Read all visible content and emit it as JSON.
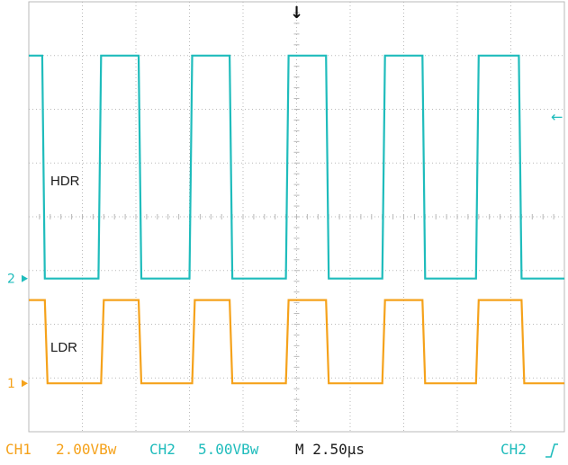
{
  "colors": {
    "ch1": "#f5a21b",
    "ch2": "#1fbcbc",
    "grid": "#b9b9b9",
    "background": "#ffffff",
    "text": "#1a1a1a"
  },
  "markers": {
    "ch1_ground": "1",
    "ch2_ground": "2",
    "trigger_position": "↓",
    "trigger_level": "←"
  },
  "status": {
    "ch1": "CH1",
    "ch1_scale": "2.00VBw",
    "ch2": "CH2",
    "ch2_scale": "5.00VBw",
    "timebase": "M 2.50µs",
    "trigger_source": "CH2",
    "trigger_slope_icon": "rising-edge-icon"
  },
  "chart_data": {
    "type": "line",
    "x_unit": "divisions",
    "y_unit": "divisions",
    "xlim": [
      0,
      10
    ],
    "ylim": [
      -4,
      4
    ],
    "grid": true,
    "series": [
      {
        "name": "HDR",
        "color": "#1fbcbc",
        "low": -1.15,
        "high": 3.0,
        "x": [
          0,
          0.25,
          0.3,
          1.3,
          1.35,
          2.05,
          2.1,
          3.0,
          3.05,
          3.75,
          3.8,
          4.8,
          4.85,
          5.55,
          5.6,
          6.6,
          6.65,
          7.35,
          7.4,
          8.35,
          8.4,
          9.15,
          9.2,
          10
        ],
        "y": [
          3.0,
          3.0,
          -1.15,
          -1.15,
          3.0,
          3.0,
          -1.15,
          -1.15,
          3.0,
          3.0,
          -1.15,
          -1.15,
          3.0,
          3.0,
          -1.15,
          -1.15,
          3.0,
          3.0,
          -1.15,
          -1.15,
          3.0,
          3.0,
          -1.15,
          -1.15
        ]
      },
      {
        "name": "LDR",
        "color": "#f5a21b",
        "low": -3.1,
        "high": -1.55,
        "x": [
          0,
          0.3,
          0.35,
          1.35,
          1.4,
          2.05,
          2.1,
          3.05,
          3.1,
          3.75,
          3.8,
          4.8,
          4.85,
          5.55,
          5.6,
          6.6,
          6.65,
          7.35,
          7.4,
          8.35,
          8.4,
          9.2,
          9.25,
          10
        ],
        "y": [
          -1.55,
          -1.55,
          -3.1,
          -3.1,
          -1.55,
          -1.55,
          -3.1,
          -3.1,
          -1.55,
          -1.55,
          -3.1,
          -3.1,
          -1.55,
          -1.55,
          -3.1,
          -3.1,
          -1.55,
          -1.55,
          -3.1,
          -3.1,
          -1.55,
          -1.55,
          -3.1,
          -3.1
        ]
      }
    ],
    "ground_levels": {
      "HDR": -1.15,
      "LDR": -3.1
    },
    "trigger_level": 1.85
  }
}
